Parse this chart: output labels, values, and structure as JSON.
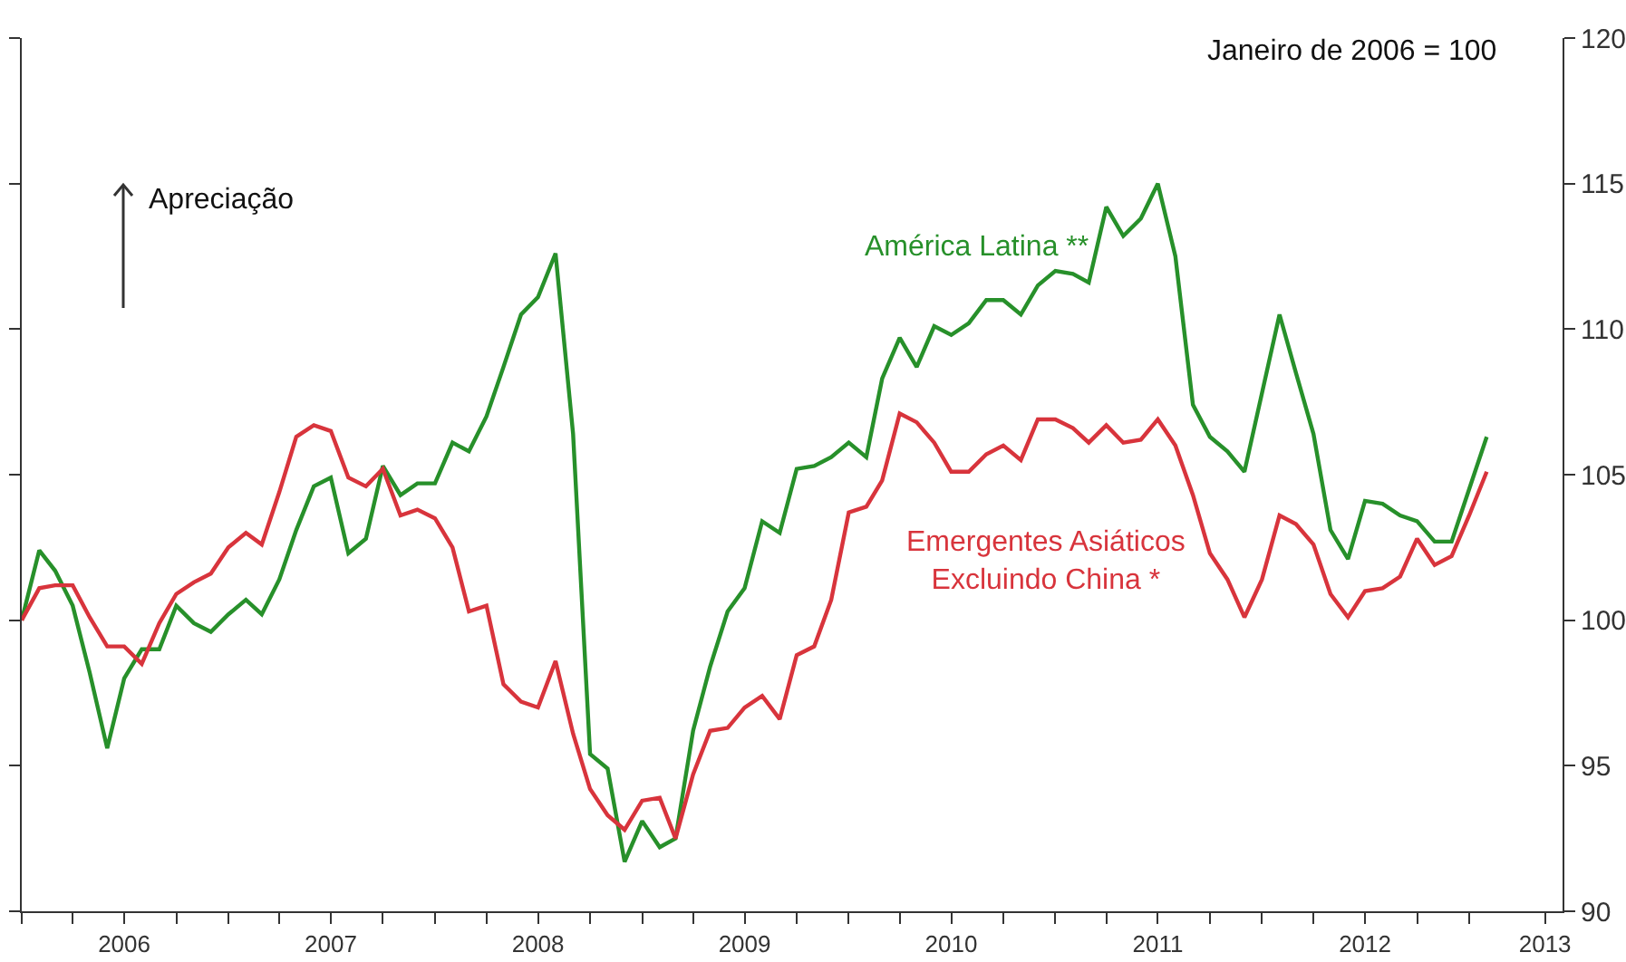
{
  "chart_data": {
    "type": "line",
    "annotations": [
      "Janeiro de 2006 = 100",
      "Apreciação"
    ],
    "x": [
      "2006-01",
      "2006-02",
      "2006-03",
      "2006-04",
      "2006-05",
      "2006-06",
      "2006-07",
      "2006-08",
      "2006-09",
      "2006-10",
      "2006-11",
      "2006-12",
      "2007-01",
      "2007-02",
      "2007-03",
      "2007-04",
      "2007-05",
      "2007-06",
      "2007-07",
      "2007-08",
      "2007-09",
      "2007-10",
      "2007-11",
      "2007-12",
      "2008-01",
      "2008-02",
      "2008-03",
      "2008-04",
      "2008-05",
      "2008-06",
      "2008-07",
      "2008-08",
      "2008-09",
      "2008-10",
      "2008-11",
      "2008-12",
      "2009-01",
      "2009-02",
      "2009-03",
      "2009-04",
      "2009-05",
      "2009-06",
      "2009-07",
      "2009-08",
      "2009-09",
      "2009-10",
      "2009-11",
      "2009-12",
      "2010-01",
      "2010-02",
      "2010-03",
      "2010-04",
      "2010-05",
      "2010-06",
      "2010-07",
      "2010-08",
      "2010-09",
      "2010-10",
      "2010-11",
      "2010-12",
      "2011-01",
      "2011-02",
      "2011-03",
      "2011-04",
      "2011-05",
      "2011-06",
      "2011-07",
      "2011-08",
      "2011-09",
      "2011-10",
      "2011-11",
      "2011-12",
      "2012-01",
      "2012-02",
      "2012-03",
      "2012-04",
      "2012-05",
      "2012-06",
      "2012-07",
      "2012-08",
      "2012-09",
      "2012-10",
      "2012-11",
      "2012-12",
      "2013-01",
      "2013-02"
    ],
    "series": [
      {
        "name": "América Latina **",
        "color": "#27902a",
        "values": [
          100.0,
          102.4,
          101.7,
          100.5,
          98.2,
          95.6,
          98.0,
          99.0,
          99.0,
          100.5,
          99.9,
          99.6,
          100.2,
          100.7,
          100.2,
          101.4,
          103.1,
          104.6,
          104.9,
          102.3,
          102.8,
          105.3,
          104.3,
          104.7,
          104.7,
          106.1,
          105.8,
          107.0,
          108.7,
          110.5,
          111.1,
          112.6,
          106.4,
          95.4,
          94.9,
          91.7,
          93.1,
          92.2,
          92.5,
          96.2,
          98.4,
          100.3,
          101.1,
          103.4,
          103.0,
          105.2,
          105.3,
          105.6,
          106.1,
          105.6,
          108.3,
          109.7,
          108.7,
          110.1,
          109.8,
          110.2,
          111.0,
          111.0,
          110.5,
          111.5,
          112.0,
          111.9,
          111.6,
          114.2,
          113.2,
          113.8,
          115.0,
          112.5,
          107.4,
          106.3,
          105.8,
          105.1,
          107.8,
          110.5,
          108.5,
          106.4,
          103.1,
          102.1,
          104.1,
          104.0,
          103.6,
          103.4,
          102.7,
          102.7,
          104.5,
          106.3
        ]
      },
      {
        "name": "Emergentes Asiáticos\nExcluindo China *",
        "color": "#d8343c",
        "values": [
          100.0,
          101.1,
          101.2,
          101.2,
          100.1,
          99.1,
          99.1,
          98.5,
          99.9,
          100.9,
          101.3,
          101.6,
          102.5,
          103.0,
          102.6,
          104.4,
          106.3,
          106.7,
          106.5,
          104.9,
          104.6,
          105.2,
          103.6,
          103.8,
          103.5,
          102.5,
          100.3,
          100.5,
          97.8,
          97.2,
          97.0,
          98.6,
          96.1,
          94.2,
          93.3,
          92.8,
          93.8,
          93.9,
          92.5,
          94.7,
          96.2,
          96.3,
          97.0,
          97.4,
          96.6,
          98.8,
          99.1,
          100.7,
          103.7,
          103.9,
          104.8,
          107.1,
          106.8,
          106.1,
          105.1,
          105.1,
          105.7,
          106.0,
          105.5,
          106.9,
          106.9,
          106.6,
          106.1,
          106.7,
          106.1,
          106.2,
          106.9,
          106.0,
          104.3,
          102.3,
          101.4,
          100.1,
          101.4,
          103.6,
          103.3,
          102.6,
          100.9,
          100.1,
          101.0,
          101.1,
          101.5,
          102.8,
          101.9,
          102.2,
          103.6,
          105.1
        ]
      }
    ],
    "xlim": [
      "2006-01-01",
      "2013-06-15"
    ],
    "xticks": [
      {
        "value": "2006-01-01",
        "label": null
      },
      {
        "value": "2006-04-01",
        "label": null
      },
      {
        "value": "2006-07-01",
        "label": "2006"
      },
      {
        "value": "2006-10-01",
        "label": null
      },
      {
        "value": "2007-01-01",
        "label": null
      },
      {
        "value": "2007-04-01",
        "label": null
      },
      {
        "value": "2007-07-01",
        "label": "2007"
      },
      {
        "value": "2007-10-01",
        "label": null
      },
      {
        "value": "2008-01-01",
        "label": null
      },
      {
        "value": "2008-04-01",
        "label": null
      },
      {
        "value": "2008-07-01",
        "label": "2008"
      },
      {
        "value": "2008-10-01",
        "label": null
      },
      {
        "value": "2009-01-01",
        "label": null
      },
      {
        "value": "2009-04-01",
        "label": null
      },
      {
        "value": "2009-07-01",
        "label": "2009"
      },
      {
        "value": "2009-10-01",
        "label": null
      },
      {
        "value": "2010-01-01",
        "label": null
      },
      {
        "value": "2010-04-01",
        "label": null
      },
      {
        "value": "2010-07-01",
        "label": "2010"
      },
      {
        "value": "2010-10-01",
        "label": null
      },
      {
        "value": "2011-01-01",
        "label": null
      },
      {
        "value": "2011-04-01",
        "label": null
      },
      {
        "value": "2011-07-01",
        "label": "2011"
      },
      {
        "value": "2011-10-01",
        "label": null
      },
      {
        "value": "2012-01-01",
        "label": null
      },
      {
        "value": "2012-04-01",
        "label": null
      },
      {
        "value": "2012-07-01",
        "label": "2012"
      },
      {
        "value": "2012-10-01",
        "label": null
      },
      {
        "value": "2013-01-01",
        "label": null
      },
      {
        "value": "2013-05-15",
        "label": "2013"
      }
    ],
    "ylim": [
      90,
      120
    ],
    "yticks": [
      90,
      95,
      100,
      105,
      110,
      115,
      120
    ],
    "grid": false,
    "legend": false,
    "marker": "none",
    "line_style": "solid"
  }
}
